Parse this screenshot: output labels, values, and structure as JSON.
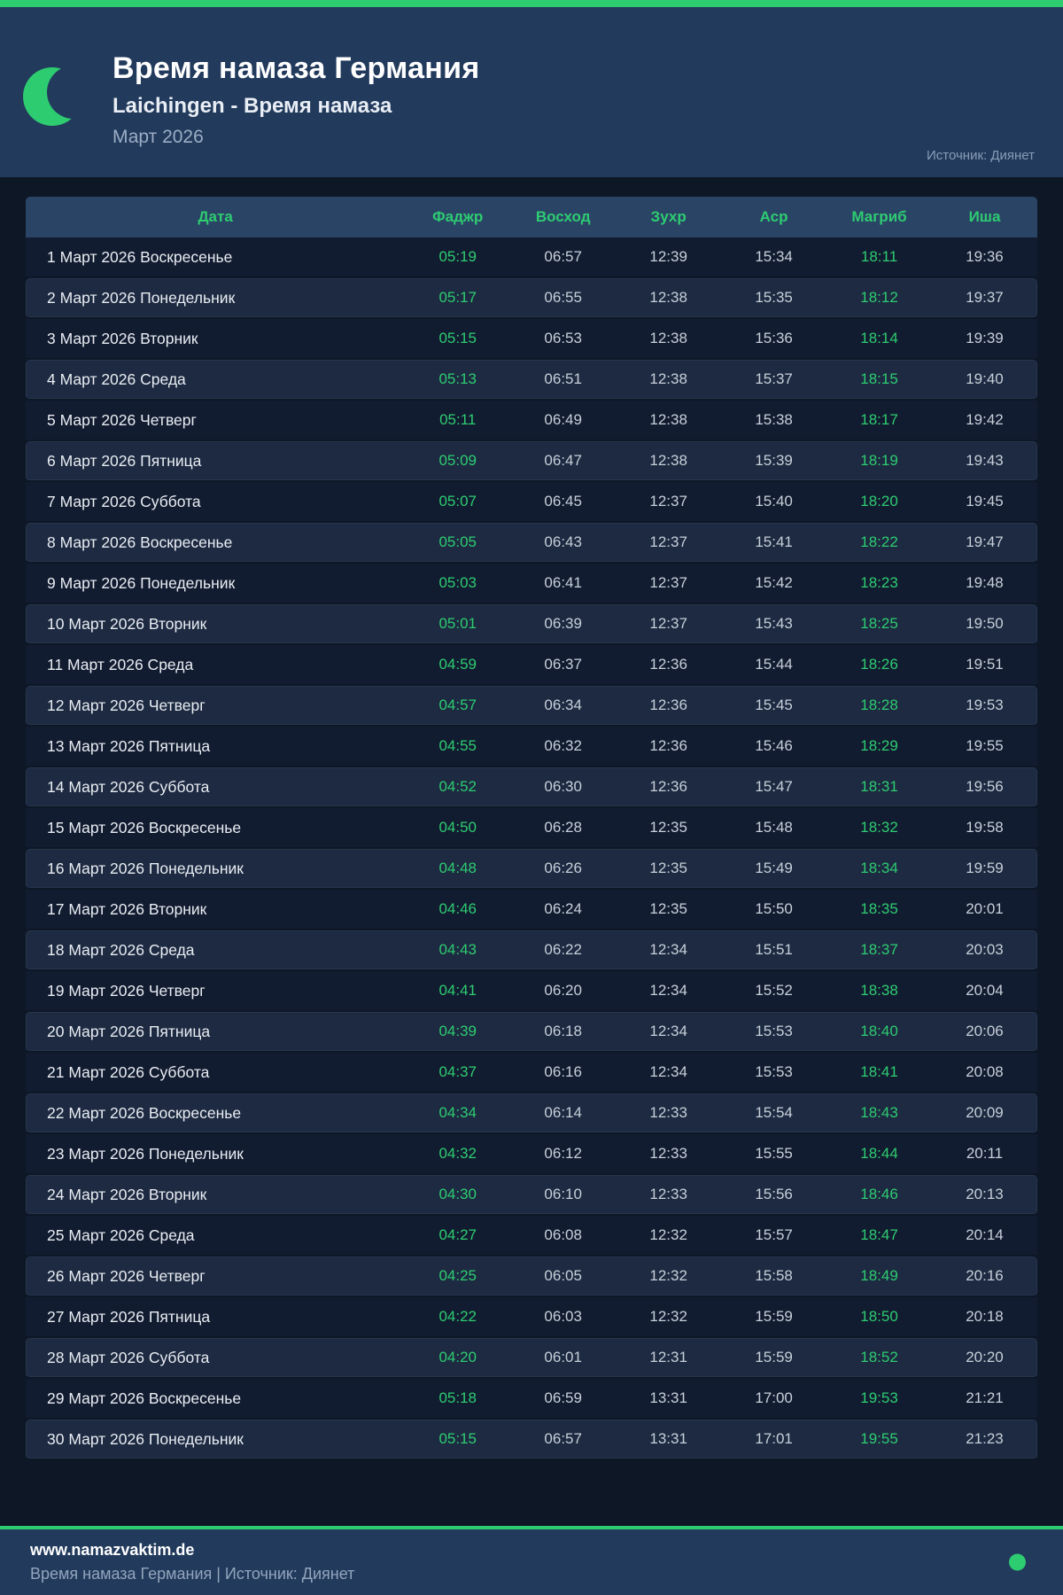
{
  "theme": {
    "accent": "#2ecc71",
    "page-bg": "#0d1726",
    "header-bg": "#223a5c",
    "thead-bg": "#2a4466",
    "row-odd": "#121c30",
    "row-even": "#1d2a41",
    "time-color": "#c7cfd9",
    "date-color": "#e9edf3",
    "muted": "#92a5bc"
  },
  "header": {
    "title": "Время намаза Германия",
    "subtitle": "Laichingen - Время намаза",
    "month": "Март 2026",
    "source": "Источник: Диянет",
    "moon_icon": "crescent-moon"
  },
  "table": {
    "columns": [
      "Дата",
      "Фаджр",
      "Восход",
      "Зухр",
      "Аср",
      "Магриб",
      "Иша"
    ],
    "green_time_columns": [
      "Фаджр",
      "Магриб"
    ],
    "rows": [
      {
        "date": "1 Март 2026 Воскресенье",
        "times": [
          "05:19",
          "06:57",
          "12:39",
          "15:34",
          "18:11",
          "19:36"
        ]
      },
      {
        "date": "2 Март 2026 Понедельник",
        "times": [
          "05:17",
          "06:55",
          "12:38",
          "15:35",
          "18:12",
          "19:37"
        ]
      },
      {
        "date": "3 Март 2026 Вторник",
        "times": [
          "05:15",
          "06:53",
          "12:38",
          "15:36",
          "18:14",
          "19:39"
        ]
      },
      {
        "date": "4 Март 2026 Среда",
        "times": [
          "05:13",
          "06:51",
          "12:38",
          "15:37",
          "18:15",
          "19:40"
        ]
      },
      {
        "date": "5 Март 2026 Четверг",
        "times": [
          "05:11",
          "06:49",
          "12:38",
          "15:38",
          "18:17",
          "19:42"
        ]
      },
      {
        "date": "6 Март 2026 Пятница",
        "times": [
          "05:09",
          "06:47",
          "12:38",
          "15:39",
          "18:19",
          "19:43"
        ]
      },
      {
        "date": "7 Март 2026 Суббота",
        "times": [
          "05:07",
          "06:45",
          "12:37",
          "15:40",
          "18:20",
          "19:45"
        ]
      },
      {
        "date": "8 Март 2026 Воскресенье",
        "times": [
          "05:05",
          "06:43",
          "12:37",
          "15:41",
          "18:22",
          "19:47"
        ]
      },
      {
        "date": "9 Март 2026 Понедельник",
        "times": [
          "05:03",
          "06:41",
          "12:37",
          "15:42",
          "18:23",
          "19:48"
        ]
      },
      {
        "date": "10 Март 2026 Вторник",
        "times": [
          "05:01",
          "06:39",
          "12:37",
          "15:43",
          "18:25",
          "19:50"
        ]
      },
      {
        "date": "11 Март 2026 Среда",
        "times": [
          "04:59",
          "06:37",
          "12:36",
          "15:44",
          "18:26",
          "19:51"
        ]
      },
      {
        "date": "12 Март 2026 Четверг",
        "times": [
          "04:57",
          "06:34",
          "12:36",
          "15:45",
          "18:28",
          "19:53"
        ]
      },
      {
        "date": "13 Март 2026 Пятница",
        "times": [
          "04:55",
          "06:32",
          "12:36",
          "15:46",
          "18:29",
          "19:55"
        ]
      },
      {
        "date": "14 Март 2026 Суббота",
        "times": [
          "04:52",
          "06:30",
          "12:36",
          "15:47",
          "18:31",
          "19:56"
        ]
      },
      {
        "date": "15 Март 2026 Воскресенье",
        "times": [
          "04:50",
          "06:28",
          "12:35",
          "15:48",
          "18:32",
          "19:58"
        ]
      },
      {
        "date": "16 Март 2026 Понедельник",
        "times": [
          "04:48",
          "06:26",
          "12:35",
          "15:49",
          "18:34",
          "19:59"
        ]
      },
      {
        "date": "17 Март 2026 Вторник",
        "times": [
          "04:46",
          "06:24",
          "12:35",
          "15:50",
          "18:35",
          "20:01"
        ]
      },
      {
        "date": "18 Март 2026 Среда",
        "times": [
          "04:43",
          "06:22",
          "12:34",
          "15:51",
          "18:37",
          "20:03"
        ]
      },
      {
        "date": "19 Март 2026 Четверг",
        "times": [
          "04:41",
          "06:20",
          "12:34",
          "15:52",
          "18:38",
          "20:04"
        ]
      },
      {
        "date": "20 Март 2026 Пятница",
        "times": [
          "04:39",
          "06:18",
          "12:34",
          "15:53",
          "18:40",
          "20:06"
        ]
      },
      {
        "date": "21 Март 2026 Суббота",
        "times": [
          "04:37",
          "06:16",
          "12:34",
          "15:53",
          "18:41",
          "20:08"
        ]
      },
      {
        "date": "22 Март 2026 Воскресенье",
        "times": [
          "04:34",
          "06:14",
          "12:33",
          "15:54",
          "18:43",
          "20:09"
        ]
      },
      {
        "date": "23 Март 2026 Понедельник",
        "times": [
          "04:32",
          "06:12",
          "12:33",
          "15:55",
          "18:44",
          "20:11"
        ]
      },
      {
        "date": "24 Март 2026 Вторник",
        "times": [
          "04:30",
          "06:10",
          "12:33",
          "15:56",
          "18:46",
          "20:13"
        ]
      },
      {
        "date": "25 Март 2026 Среда",
        "times": [
          "04:27",
          "06:08",
          "12:32",
          "15:57",
          "18:47",
          "20:14"
        ]
      },
      {
        "date": "26 Март 2026 Четверг",
        "times": [
          "04:25",
          "06:05",
          "12:32",
          "15:58",
          "18:49",
          "20:16"
        ]
      },
      {
        "date": "27 Март 2026 Пятница",
        "times": [
          "04:22",
          "06:03",
          "12:32",
          "15:59",
          "18:50",
          "20:18"
        ]
      },
      {
        "date": "28 Март 2026 Суббота",
        "times": [
          "04:20",
          "06:01",
          "12:31",
          "15:59",
          "18:52",
          "20:20"
        ]
      },
      {
        "date": "29 Март 2026 Воскресенье",
        "times": [
          "05:18",
          "06:59",
          "13:31",
          "17:00",
          "19:53",
          "21:21"
        ]
      },
      {
        "date": "30 Март 2026 Понедельник",
        "times": [
          "05:15",
          "06:57",
          "13:31",
          "17:01",
          "19:55",
          "21:23"
        ]
      }
    ]
  },
  "footer": {
    "website": "www.namazvaktim.de",
    "tagline": "Время намаза Германия | Источник: Диянет"
  }
}
